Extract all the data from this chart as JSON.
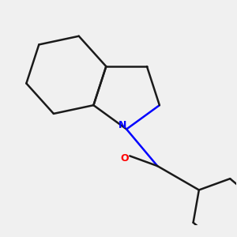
{
  "background_color": "#f0f0f0",
  "bond_color": "#1a1a1a",
  "nitrogen_color": "#0000ff",
  "oxygen_color": "#ff0000",
  "line_width": 1.8,
  "figsize": [
    3.0,
    3.0
  ],
  "dpi": 100
}
